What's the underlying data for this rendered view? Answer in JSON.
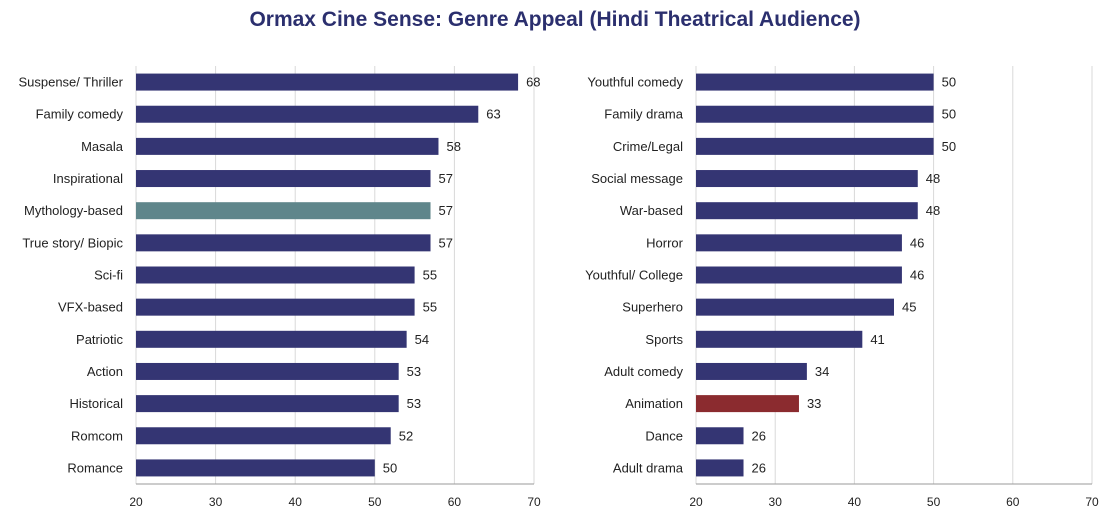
{
  "title": "Ormax Cine Sense: Genre Appeal (Hindi Theatrical Audience)",
  "colors": {
    "bar": "#343573",
    "highlight_left": "#5f868b",
    "highlight_right": "#8b2b2f",
    "grid": "#d9d9d9",
    "axis": "#999999"
  },
  "chart_data": [
    {
      "type": "bar",
      "orientation": "horizontal",
      "categories": [
        "Suspense/ Thriller",
        "Family comedy",
        "Masala",
        "Inspirational",
        "Mythology-based",
        "True story/ Biopic",
        "Sci-fi",
        "VFX-based",
        "Patriotic",
        "Action",
        "Historical",
        "Romcom",
        "Romance"
      ],
      "values": [
        68,
        63,
        58,
        57,
        57,
        57,
        55,
        55,
        54,
        53,
        53,
        52,
        50
      ],
      "data_labels": [
        "68",
        "63",
        "58",
        "57",
        "57",
        "57",
        "55",
        "55",
        "54",
        "53",
        "53",
        "52",
        "50"
      ],
      "xlim": [
        20,
        70
      ],
      "ticks": [
        20,
        30,
        40,
        50,
        60,
        70
      ],
      "tick_labels": [
        "20",
        "30",
        "40",
        "50",
        "60",
        "70"
      ],
      "highlight_index": 4,
      "grid": true
    },
    {
      "type": "bar",
      "orientation": "horizontal",
      "categories": [
        "Youthful comedy",
        "Family drama",
        "Crime/Legal",
        "Social message",
        "War-based",
        "Horror",
        "Youthful/ College",
        "Superhero",
        "Sports",
        "Adult comedy",
        "Animation",
        "Dance",
        "Adult drama"
      ],
      "values": [
        50,
        50,
        50,
        48,
        48,
        46,
        46,
        45,
        41,
        34,
        33,
        26,
        26
      ],
      "data_labels": [
        "50",
        "50",
        "50",
        "48",
        "48",
        "46",
        "46",
        "45",
        "41",
        "34",
        "33",
        "26",
        "26"
      ],
      "xlim": [
        20,
        70
      ],
      "ticks": [
        20,
        30,
        40,
        50,
        60,
        70
      ],
      "tick_labels": [
        "20",
        "30",
        "40",
        "50",
        "60",
        "70"
      ],
      "highlight_index": 10,
      "grid": true
    }
  ]
}
